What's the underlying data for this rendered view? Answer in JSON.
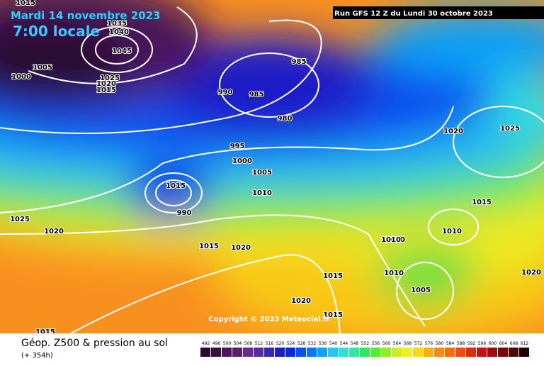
{
  "header": {
    "date": "Mardi 14 novembre 2023",
    "time": "7:00 locale",
    "run": "Run GFS 12 Z du Lundi 30 octobre 2023"
  },
  "copyright": "Copyright © 2023 Meteociel.fr",
  "footer": {
    "title": "Géop. Z500 & pression au sol",
    "lead": "(+ 354h)"
  },
  "legend": {
    "values": [
      492,
      496,
      500,
      504,
      508,
      512,
      516,
      520,
      524,
      528,
      532,
      536,
      540,
      544,
      548,
      552,
      556,
      560,
      564,
      568,
      572,
      576,
      580,
      584,
      588,
      592,
      596,
      600,
      604,
      608,
      612
    ],
    "colors": [
      "#2b0a2e",
      "#3a0f45",
      "#4a165c",
      "#5a1e73",
      "#6a2a8a",
      "#5a2aa5",
      "#3a24b8",
      "#1a1ec8",
      "#0a28e0",
      "#0a50f0",
      "#0a78f5",
      "#10a0f5",
      "#20c8f0",
      "#30e0d8",
      "#30e8a0",
      "#30e860",
      "#50f030",
      "#90f020",
      "#c8f020",
      "#f0f020",
      "#f8d818",
      "#f8b010",
      "#f88c10",
      "#f86a10",
      "#f04a10",
      "#e02a10",
      "#c81010",
      "#a00a0a",
      "#780808",
      "#500505",
      "#200000"
    ]
  },
  "isobars": [
    "1015",
    "1035",
    "1040",
    "1045",
    "1000",
    "1005",
    "1025",
    "1020",
    "1015",
    "985",
    "990",
    "985",
    "980",
    "995",
    "1000",
    "1005",
    "1010",
    "1015",
    "1020",
    "1025",
    "1020",
    "1015",
    "1010",
    "1015",
    "1010",
    "1010",
    "1005",
    "1015",
    "1020",
    "1020",
    "1015",
    "990",
    "1020",
    "1025",
    "1015",
    "1010",
    "1020"
  ]
}
